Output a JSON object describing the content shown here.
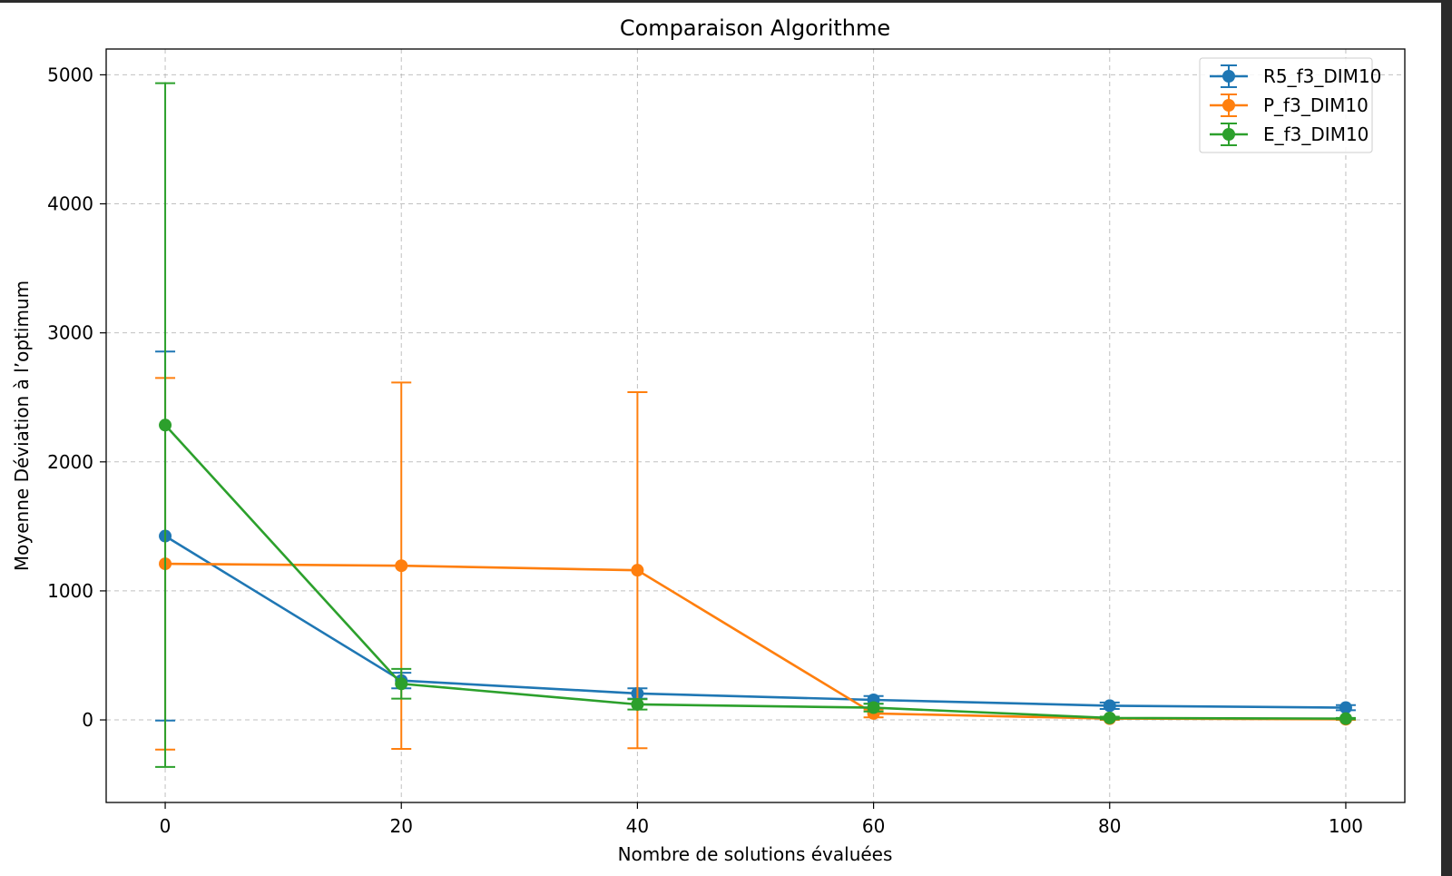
{
  "chart_data": {
    "type": "line",
    "title": "Comparaison Algorithme",
    "xlabel": "Nombre de solutions évaluées",
    "ylabel": "Moyenne Déviation à l’optimum",
    "x": [
      0,
      20,
      40,
      60,
      80,
      100
    ],
    "xticks": [
      0,
      20,
      40,
      60,
      80,
      100
    ],
    "yticks": [
      0,
      1000,
      2000,
      3000,
      4000,
      5000
    ],
    "xlim": [
      -5,
      105
    ],
    "ylim": [
      -640,
      5200
    ],
    "grid": true,
    "legend_position": "top-right",
    "error_bars": true,
    "series": [
      {
        "name": "R5_f3_DIM10",
        "color": "#1f77b4",
        "values": [
          1425,
          305,
          205,
          155,
          110,
          95
        ],
        "errors": [
          1430,
          60,
          40,
          30,
          25,
          20
        ]
      },
      {
        "name": "P_f3_DIM10",
        "color": "#ff7f0e",
        "values": [
          1210,
          1195,
          1160,
          50,
          10,
          5
        ],
        "errors": [
          1440,
          1420,
          1380,
          30,
          10,
          5
        ]
      },
      {
        "name": "E_f3_DIM10",
        "color": "#2ca02c",
        "values": [
          2285,
          280,
          120,
          95,
          15,
          10
        ],
        "errors": [
          2650,
          115,
          40,
          30,
          10,
          5
        ]
      }
    ]
  }
}
